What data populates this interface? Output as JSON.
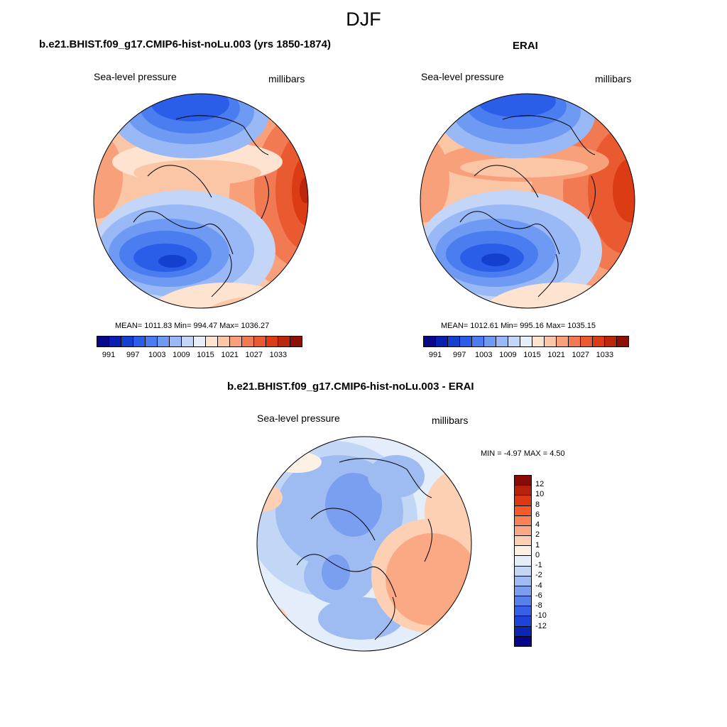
{
  "figure": {
    "title": "DJF"
  },
  "panels": [
    {
      "title": "b.e21.BHIST.f09_g17.CMIP6-hist-noLu.003 (yrs 1850-1874)",
      "left_label": "Sea-level pressure",
      "right_label": "millibars",
      "stats": "MEAN= 1011.83  Min= 994.47  Max= 1036.27"
    },
    {
      "title": "ERAI",
      "left_label": "Sea-level pressure",
      "right_label": "millibars",
      "stats": "MEAN= 1012.61  Min= 995.16  Max= 1035.15"
    },
    {
      "title": "b.e21.BHIST.f09_g17.CMIP6-hist-noLu.003 - ERAI",
      "left_label": "Sea-level pressure",
      "right_label": "millibars",
      "stats": "MIN =  -4.97 MAX =   4.50"
    }
  ],
  "abs_colorbar": {
    "colors": [
      "#08088a",
      "#0a1fb0",
      "#1440d0",
      "#2a5ee8",
      "#4a7df0",
      "#6e9af4",
      "#98b8f6",
      "#c4d6f8",
      "#e6eefa",
      "#fde3d0",
      "#fbc6a6",
      "#f7a07a",
      "#f27a52",
      "#ea5a30",
      "#dc3c14",
      "#bc260a",
      "#8c1006"
    ],
    "labels": [
      "991",
      "997",
      "1003",
      "1009",
      "1015",
      "1021",
      "1027",
      "1033"
    ]
  },
  "diff_colorbar": {
    "colors": [
      "#8c0a06",
      "#b82008",
      "#dc3812",
      "#f55a28",
      "#f88258",
      "#fba884",
      "#fdd0b4",
      "#fdf0e4",
      "#e4eefa",
      "#c2d6f6",
      "#9ebcf2",
      "#7a9ef0",
      "#5680ec",
      "#3462e6",
      "#1c44d8",
      "#0c26b4",
      "#06068a"
    ],
    "labels": [
      "12",
      "10",
      "8",
      "6",
      "4",
      "2",
      "1",
      "0",
      "-1",
      "-2",
      "-4",
      "-6",
      "-8",
      "-10",
      "-12"
    ]
  }
}
